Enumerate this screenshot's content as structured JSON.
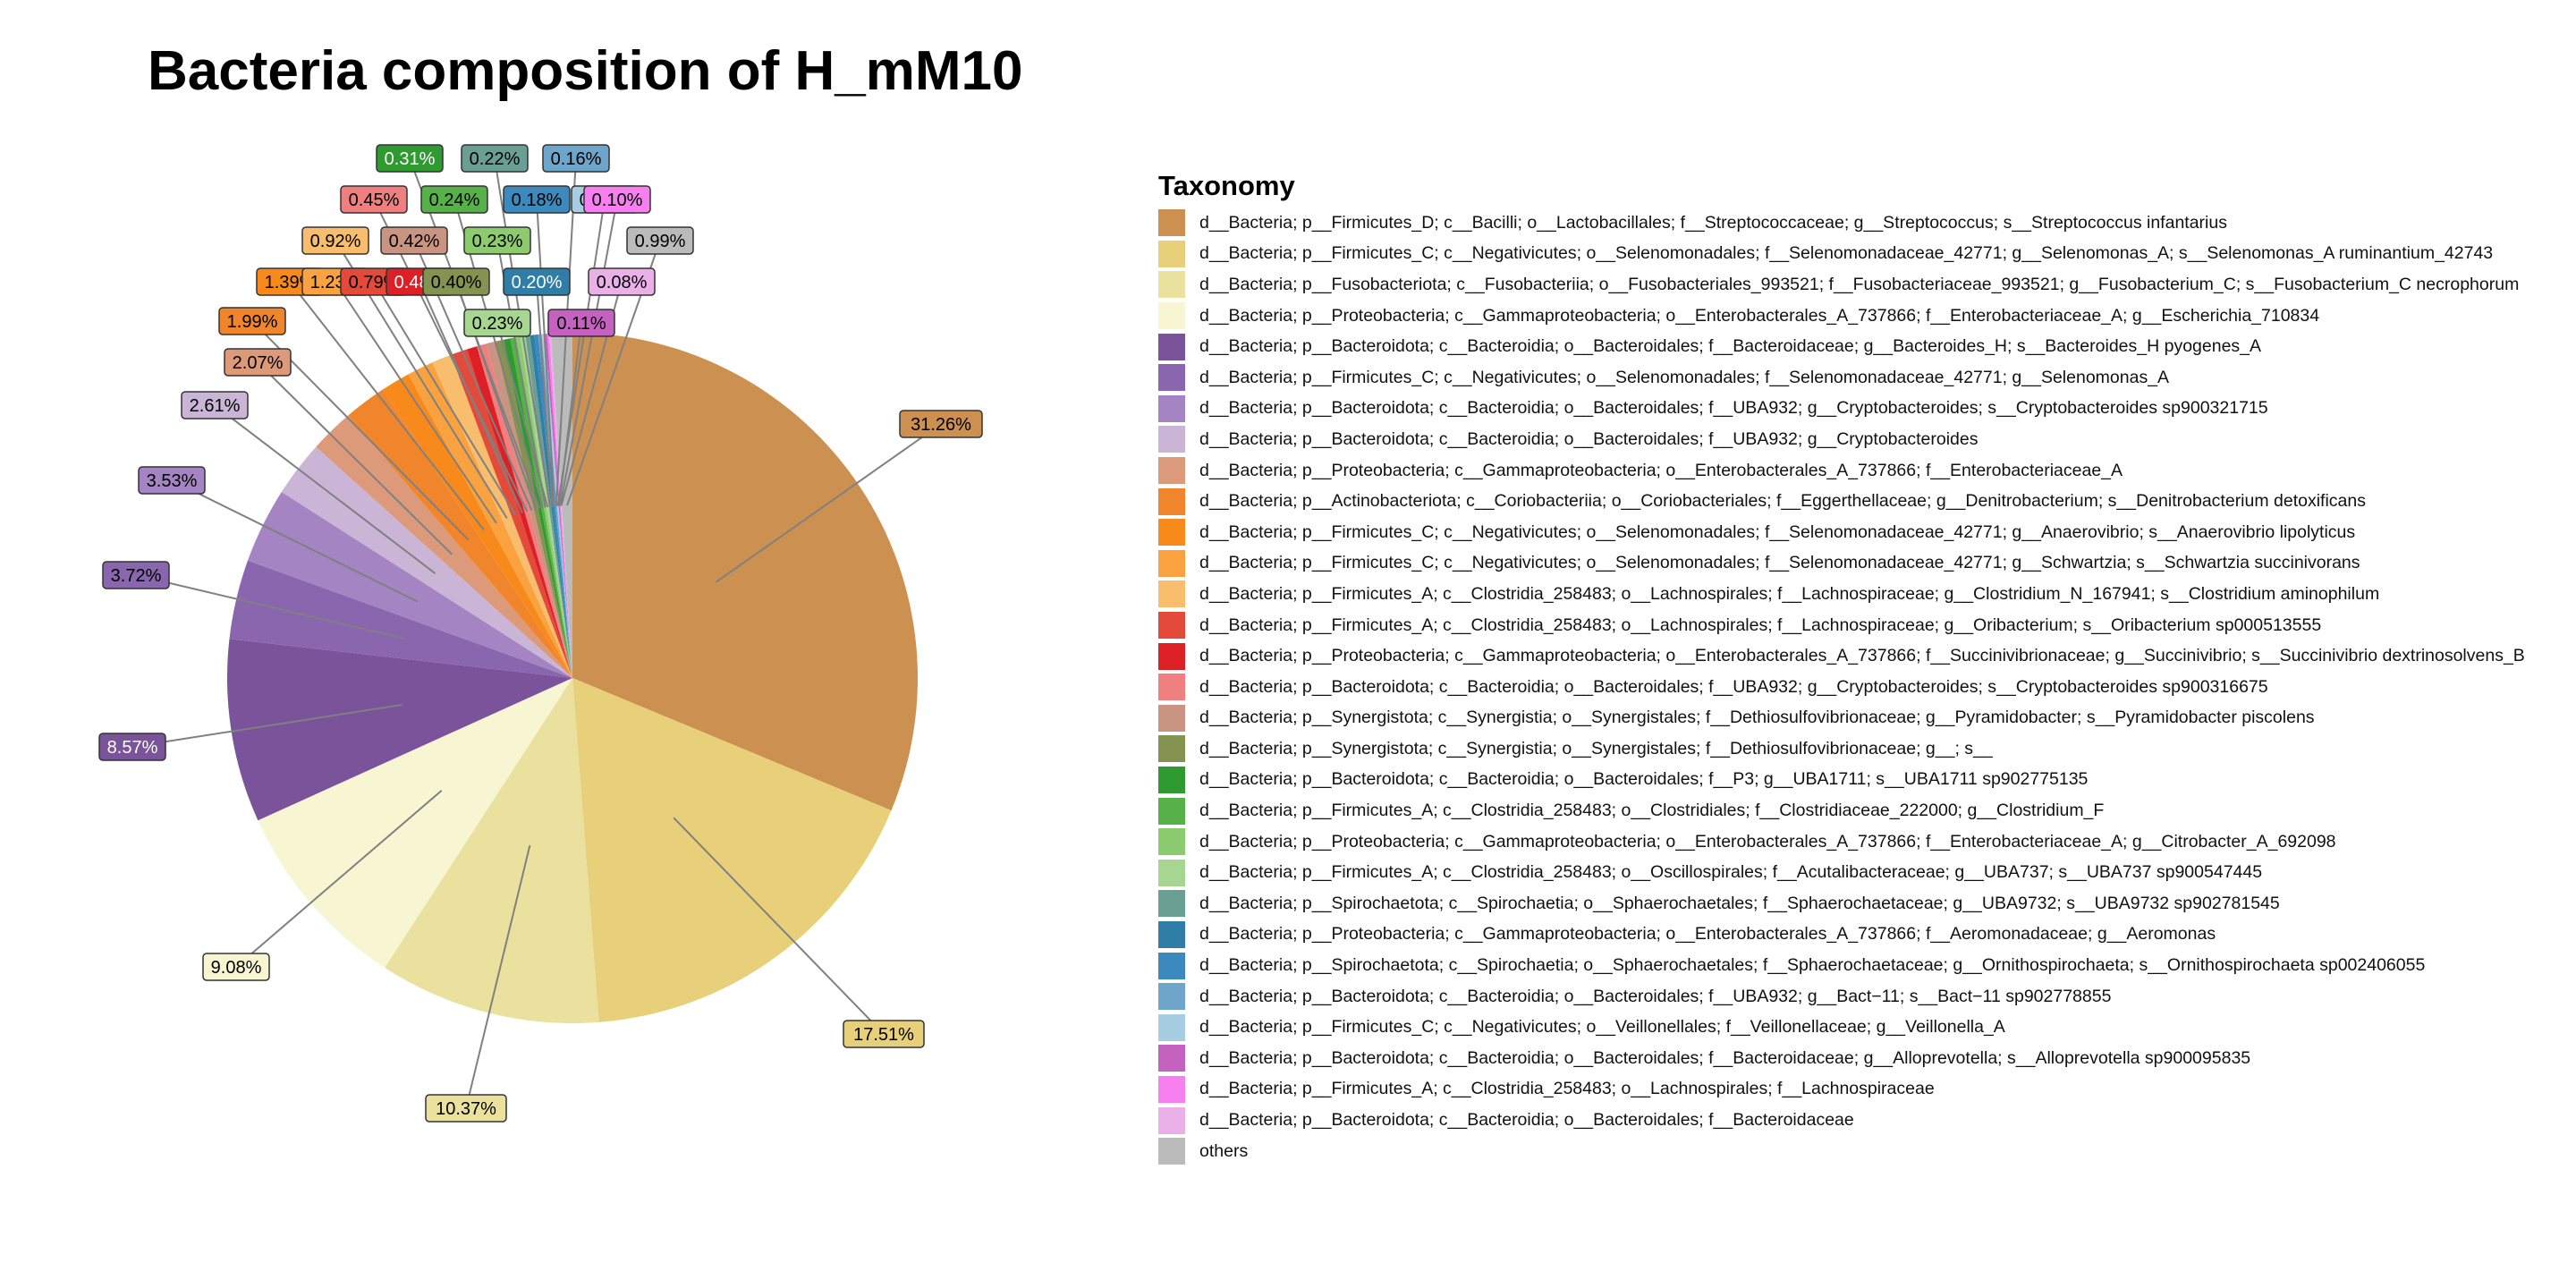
{
  "chart_data": {
    "type": "pie",
    "title": "Bacteria composition of H_mM10",
    "legend_title": "Taxonomy",
    "legend_position": "right",
    "start_angle_deg": 0,
    "direction": "clockwise",
    "slices": [
      {
        "label": "d__Bacteria; p__Firmicutes_D; c__Bacilli; o__Lactobacillales; f__Streptococcaceae; g__Streptococcus; s__Streptococcus infantarius",
        "value": 31.26,
        "text": "31.26%",
        "color": "#CC9150"
      },
      {
        "label": "d__Bacteria; p__Firmicutes_C; c__Negativicutes; o__Selenomonadales; f__Selenomonadaceae_42771; g__Selenomonas_A; s__Selenomonas_A ruminantium_42743",
        "value": 17.51,
        "text": "17.51%",
        "color": "#E8D07A"
      },
      {
        "label": "d__Bacteria; p__Fusobacteriota; c__Fusobacteriia; o__Fusobacteriales_993521; f__Fusobacteriaceae_993521; g__Fusobacterium_C; s__Fusobacterium_C necrophorum",
        "value": 10.37,
        "text": "10.37%",
        "color": "#EBE19E"
      },
      {
        "label": "d__Bacteria; p__Proteobacteria; c__Gammaproteobacteria; o__Enterobacterales_A_737866; f__Enterobacteriaceae_A; g__Escherichia_710834",
        "value": 9.08,
        "text": "9.08%",
        "color": "#F8F6D2"
      },
      {
        "label": "d__Bacteria; p__Bacteroidota; c__Bacteroidia; o__Bacteroidales; f__Bacteroidaceae; g__Bacteroides_H; s__Bacteroides_H pyogenes_A",
        "value": 8.57,
        "text": "8.57%",
        "color": "#7A539A"
      },
      {
        "label": "d__Bacteria; p__Firmicutes_C; c__Negativicutes; o__Selenomonadales; f__Selenomonadaceae_42771; g__Selenomonas_A",
        "value": 3.72,
        "text": "3.72%",
        "color": "#8A66AE"
      },
      {
        "label": "d__Bacteria; p__Bacteroidota; c__Bacteroidia; o__Bacteroidales; f__UBA932; g__Cryptobacteroides; s__Cryptobacteroides sp900321715",
        "value": 3.53,
        "text": "3.53%",
        "color": "#A484C2"
      },
      {
        "label": "d__Bacteria; p__Bacteroidota; c__Bacteroidia; o__Bacteroidales; f__UBA932; g__Cryptobacteroides",
        "value": 2.61,
        "text": "2.61%",
        "color": "#CBB5D6"
      },
      {
        "label": "d__Bacteria; p__Proteobacteria; c__Gammaproteobacteria; o__Enterobacterales_A_737866; f__Enterobacteriaceae_A",
        "value": 2.07,
        "text": "2.07%",
        "color": "#DC9A7A"
      },
      {
        "label": "d__Bacteria; p__Actinobacteriota; c__Coriobacteriia; o__Coriobacteriales; f__Eggerthellaceae; g__Denitrobacterium; s__Denitrobacterium detoxificans",
        "value": 1.99,
        "text": "1.99%",
        "color": "#F1852B"
      },
      {
        "label": "d__Bacteria; p__Firmicutes_C; c__Negativicutes; o__Selenomonadales; f__Selenomonadaceae_42771; g__Anaerovibrio; s__Anaerovibrio lipolyticus",
        "value": 1.39,
        "text": "1.39%",
        "color": "#F88A1C"
      },
      {
        "label": "d__Bacteria; p__Firmicutes_C; c__Negativicutes; o__Selenomonadales; f__Selenomonadaceae_42771; g__Schwartzia; s__Schwartzia succinivorans",
        "value": 1.23,
        "text": "1.23%",
        "color": "#F9A23F"
      },
      {
        "label": "d__Bacteria; p__Firmicutes_A; c__Clostridia_258483; o__Lachnospirales; f__Lachnospiraceae; g__Clostridium_N_167941; s__Clostridium aminophilum",
        "value": 0.92,
        "text": "0.92%",
        "color": "#F9BD6E"
      },
      {
        "label": "d__Bacteria; p__Firmicutes_A; c__Clostridia_258483; o__Lachnospirales; f__Lachnospiraceae; g__Oribacterium; s__Oribacterium sp000513555",
        "value": 0.79,
        "text": "0.79%",
        "color": "#E34A3A"
      },
      {
        "label": "d__Bacteria; p__Proteobacteria; c__Gammaproteobacteria; o__Enterobacterales_A_737866; f__Succinivibrionaceae; g__Succinivibrio; s__Succinivibrio dextrinosolvens_B",
        "value": 0.48,
        "text": "0.48%",
        "color": "#DD1F26"
      },
      {
        "label": "d__Bacteria; p__Bacteroidota; c__Bacteroidia; o__Bacteroidales; f__UBA932; g__Cryptobacteroides; s__Cryptobacteroides sp900316675",
        "value": 0.45,
        "text": "0.45%",
        "color": "#F08080"
      },
      {
        "label": "d__Bacteria; p__Synergistota; c__Synergistia; o__Synergistales; f__Dethiosulfovibrionaceae; g__Pyramidobacter; s__Pyramidobacter piscolens",
        "value": 0.42,
        "text": "0.42%",
        "color": "#C99582"
      },
      {
        "label": "d__Bacteria; p__Synergistota; c__Synergistia; o__Synergistales; f__Dethiosulfovibrionaceae; g__; s__",
        "value": 0.4,
        "text": "0.40%",
        "color": "#849350"
      },
      {
        "label": "d__Bacteria; p__Bacteroidota; c__Bacteroidia; o__Bacteroidales; f__P3; g__UBA1711; s__UBA1711 sp902775135",
        "value": 0.31,
        "text": "0.31%",
        "color": "#2F9A2F"
      },
      {
        "label": "d__Bacteria; p__Firmicutes_A; c__Clostridia_258483; o__Clostridiales; f__Clostridiaceae_222000; g__Clostridium_F",
        "value": 0.24,
        "text": "0.24%",
        "color": "#56B148"
      },
      {
        "label": "d__Bacteria; p__Proteobacteria; c__Gammaproteobacteria; o__Enterobacterales_A_737866; f__Enterobacteriaceae_A; g__Citrobacter_A_692098",
        "value": 0.23,
        "text": "0.23%",
        "color": "#8CCB6E"
      },
      {
        "label": "d__Bacteria; p__Firmicutes_A; c__Clostridia_258483; o__Oscillospirales; f__Acutalibacteraceae; g__UBA737; s__UBA737 sp900547445",
        "value": 0.23,
        "text": "0.23%",
        "color": "#A6D691"
      },
      {
        "label": "d__Bacteria; p__Spirochaetota; c__Spirochaetia; o__Sphaerochaetales; f__Sphaerochaetaceae; g__UBA9732; s__UBA9732 sp902781545",
        "value": 0.22,
        "text": "0.22%",
        "color": "#6A9F93"
      },
      {
        "label": "d__Bacteria; p__Proteobacteria; c__Gammaproteobacteria; o__Enterobacterales_A_737866; f__Aeromonadaceae; g__Aeromonas",
        "value": 0.2,
        "text": "0.20%",
        "color": "#2E7EA8"
      },
      {
        "label": "d__Bacteria; p__Spirochaetota; c__Spirochaetia; o__Sphaerochaetales; f__Sphaerochaetaceae; g__Ornithospirochaeta; s__Ornithospirochaeta sp002406055",
        "value": 0.18,
        "text": "0.18%",
        "color": "#3C89BE"
      },
      {
        "label": "d__Bacteria; p__Bacteroidota; c__Bacteroidia; o__Bacteroidales; f__UBA932; g__Bact−11; s__Bact−11 sp902778855",
        "value": 0.16,
        "text": "0.16%",
        "color": "#6EA5CB"
      },
      {
        "label": "d__Bacteria; p__Firmicutes_C; c__Negativicutes; o__Veillonellales; f__Veillonellaceae; g__Veillonella_A",
        "value": 0.14,
        "text": "0.14%",
        "color": "#A7CDE3"
      },
      {
        "label": "d__Bacteria; p__Bacteroidota; c__Bacteroidia; o__Bacteroidales; f__Bacteroidaceae; g__Alloprevotella; s__Alloprevotella sp900095835",
        "value": 0.11,
        "text": "0.11%",
        "color": "#C562C0"
      },
      {
        "label": "d__Bacteria; p__Firmicutes_A; c__Clostridia_258483; o__Lachnospirales; f__Lachnospiraceae",
        "value": 0.1,
        "text": "0.10%",
        "color": "#F77FF0"
      },
      {
        "label": "d__Bacteria; p__Bacteroidota; c__Bacteroidia; o__Bacteroidales; f__Bacteroidaceae",
        "value": 0.08,
        "text": "0.08%",
        "color": "#E9B1E8"
      },
      {
        "label": "others",
        "value": 0.99,
        "text": "0.99%",
        "color": "#BBBBBB"
      }
    ]
  }
}
